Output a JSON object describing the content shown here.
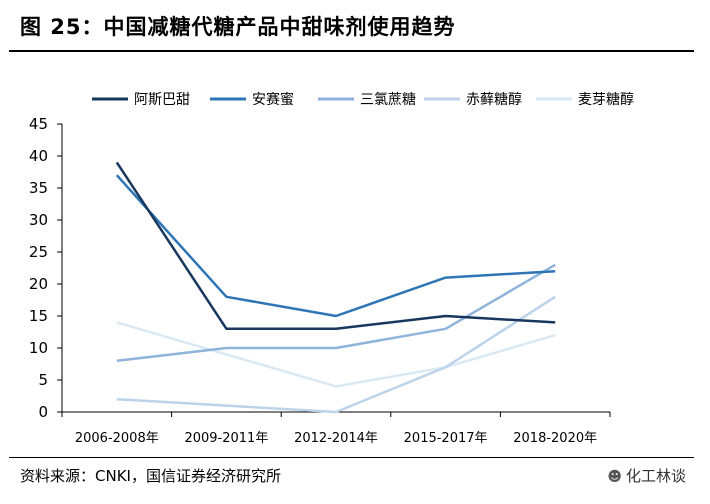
{
  "header": {
    "title": "图 25：中国减糖代糖产品中甜味剂使用趋势"
  },
  "footer": {
    "source": "资料来源：CNKI，国信证券经济研究所",
    "watermark": "化工林谈",
    "watermark_icon": "wechat-icon"
  },
  "chart_data": {
    "type": "line",
    "categories": [
      "2006-2008年",
      "2009-2011年",
      "2012-2014年",
      "2015-2017年",
      "2018-2020年"
    ],
    "series": [
      {
        "name": "阿斯巴甜",
        "color": "#17375e",
        "values": [
          39,
          13,
          13,
          15,
          14
        ]
      },
      {
        "name": "安赛蜜",
        "color": "#2e75b6",
        "values": [
          37,
          18,
          15,
          21,
          22
        ]
      },
      {
        "name": "三氯蔗糖",
        "color": "#8fb4dc",
        "values": [
          8,
          10,
          10,
          13,
          23
        ]
      },
      {
        "name": "赤藓糖醇",
        "color": "#bcd3ea",
        "values": [
          2,
          1,
          0,
          7,
          18
        ]
      },
      {
        "name": "麦芽糖醇",
        "color": "#d9e9f4",
        "values": [
          14,
          9,
          4,
          7,
          12
        ]
      }
    ],
    "ylim": [
      0,
      45
    ],
    "yticks": [
      0,
      5,
      10,
      15,
      20,
      25,
      30,
      35,
      40,
      45
    ],
    "grid": false,
    "legend": "top"
  }
}
